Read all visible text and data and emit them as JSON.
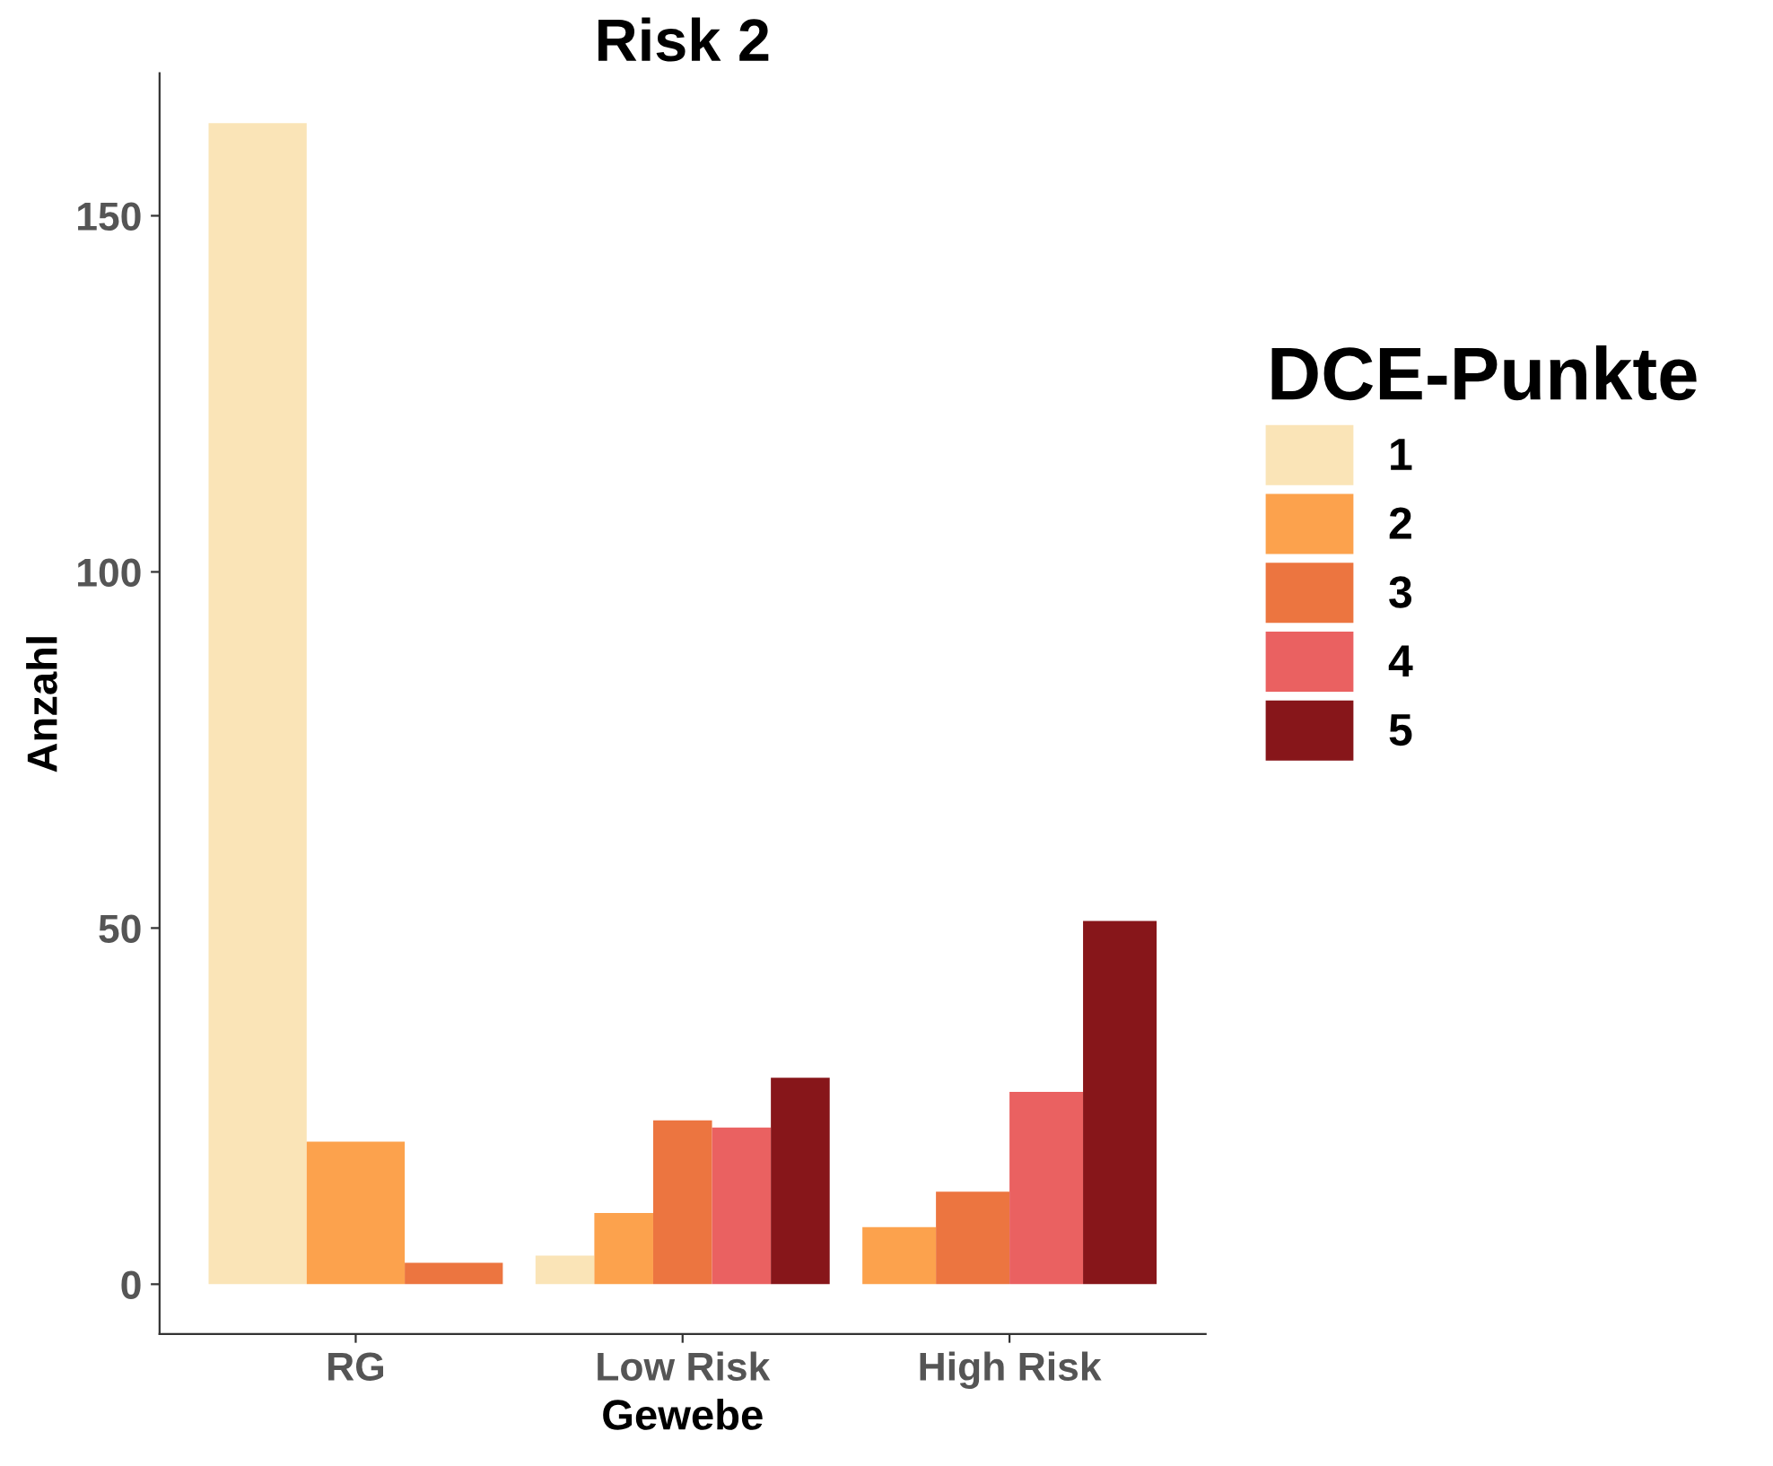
{
  "chart_data": {
    "type": "bar",
    "title": "Risk 2",
    "xlabel": "Gewebe",
    "ylabel": "Anzahl",
    "legend_title": "DCE-Punkte",
    "categories": [
      "RG",
      "Low Risk",
      "High Risk"
    ],
    "series": [
      {
        "name": "1",
        "color": "#fae4b7",
        "values": [
          163,
          4,
          null
        ]
      },
      {
        "name": "2",
        "color": "#fca24d",
        "values": [
          20,
          10,
          8
        ]
      },
      {
        "name": "3",
        "color": "#ec7540",
        "values": [
          3,
          23,
          13
        ]
      },
      {
        "name": "4",
        "color": "#ea6161",
        "values": [
          null,
          22,
          27
        ]
      },
      {
        "name": "5",
        "color": "#87161a",
        "values": [
          null,
          29,
          51
        ]
      }
    ],
    "ylim": [
      -7,
      170
    ],
    "yticks": [
      0,
      50,
      100,
      150
    ],
    "grid": false,
    "legend": "right"
  }
}
